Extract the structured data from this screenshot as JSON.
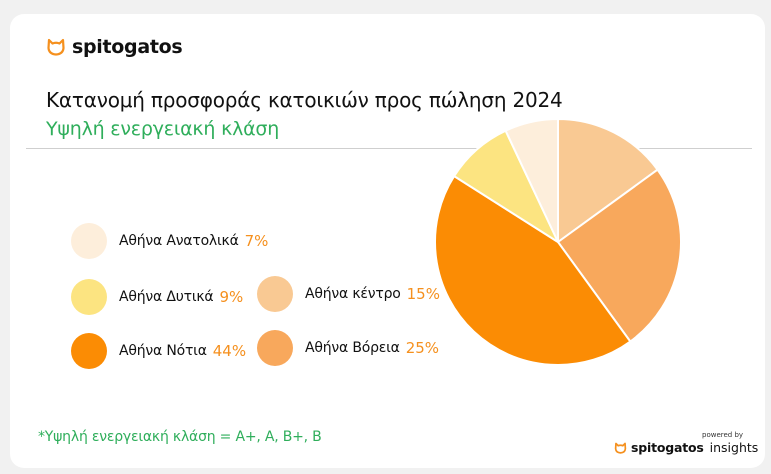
{
  "brand": {
    "name": "spitogatos",
    "icon": "cat-face-icon",
    "accent": "#f5901e"
  },
  "title": "Κατανομή προσφοράς κατοικιών προς πώληση 2024",
  "subtitle": "Υψηλή ενεργειακή κλάση",
  "footnote": "*Υψηλή ενεργειακή κλάση = Α+, Α, Β+, Β",
  "footer": {
    "powered_by": "powered by",
    "brand": "spitogatos",
    "product": "insights"
  },
  "chart_data": {
    "type": "pie",
    "title": "Κατανομή προσφοράς κατοικιών προς πώληση 2024",
    "subtitle": "Υψηλή ενεργειακή κλάση",
    "start": "12 o'clock",
    "direction": "clockwise",
    "slices": [
      {
        "label": "Αθήνα κέντρο",
        "value": 15,
        "display": "15%",
        "color": "#f9c993"
      },
      {
        "label": "Αθήνα Βόρεια",
        "value": 25,
        "display": "25%",
        "color": "#f8a85c"
      },
      {
        "label": "Αθήνα Νότια",
        "value": 44,
        "display": "44%",
        "color": "#fb8c04"
      },
      {
        "label": "Αθήνα Δυτικά",
        "value": 9,
        "display": "9%",
        "color": "#fce481"
      },
      {
        "label": "Αθήνα Ανατολικά",
        "value": 7,
        "display": "7%",
        "color": "#fdeedb"
      }
    ],
    "legend": [
      {
        "label": "Αθήνα Ανατολικά",
        "pct": "7%"
      },
      {
        "label": "Αθήνα Δυτικά",
        "pct": "9%"
      },
      {
        "label": "Αθήνα Νότια",
        "pct": "44%"
      },
      {
        "label": "Αθήνα κέντρο",
        "pct": "15%"
      },
      {
        "label": "Αθήνα Βόρεια",
        "pct": "25%"
      }
    ]
  }
}
